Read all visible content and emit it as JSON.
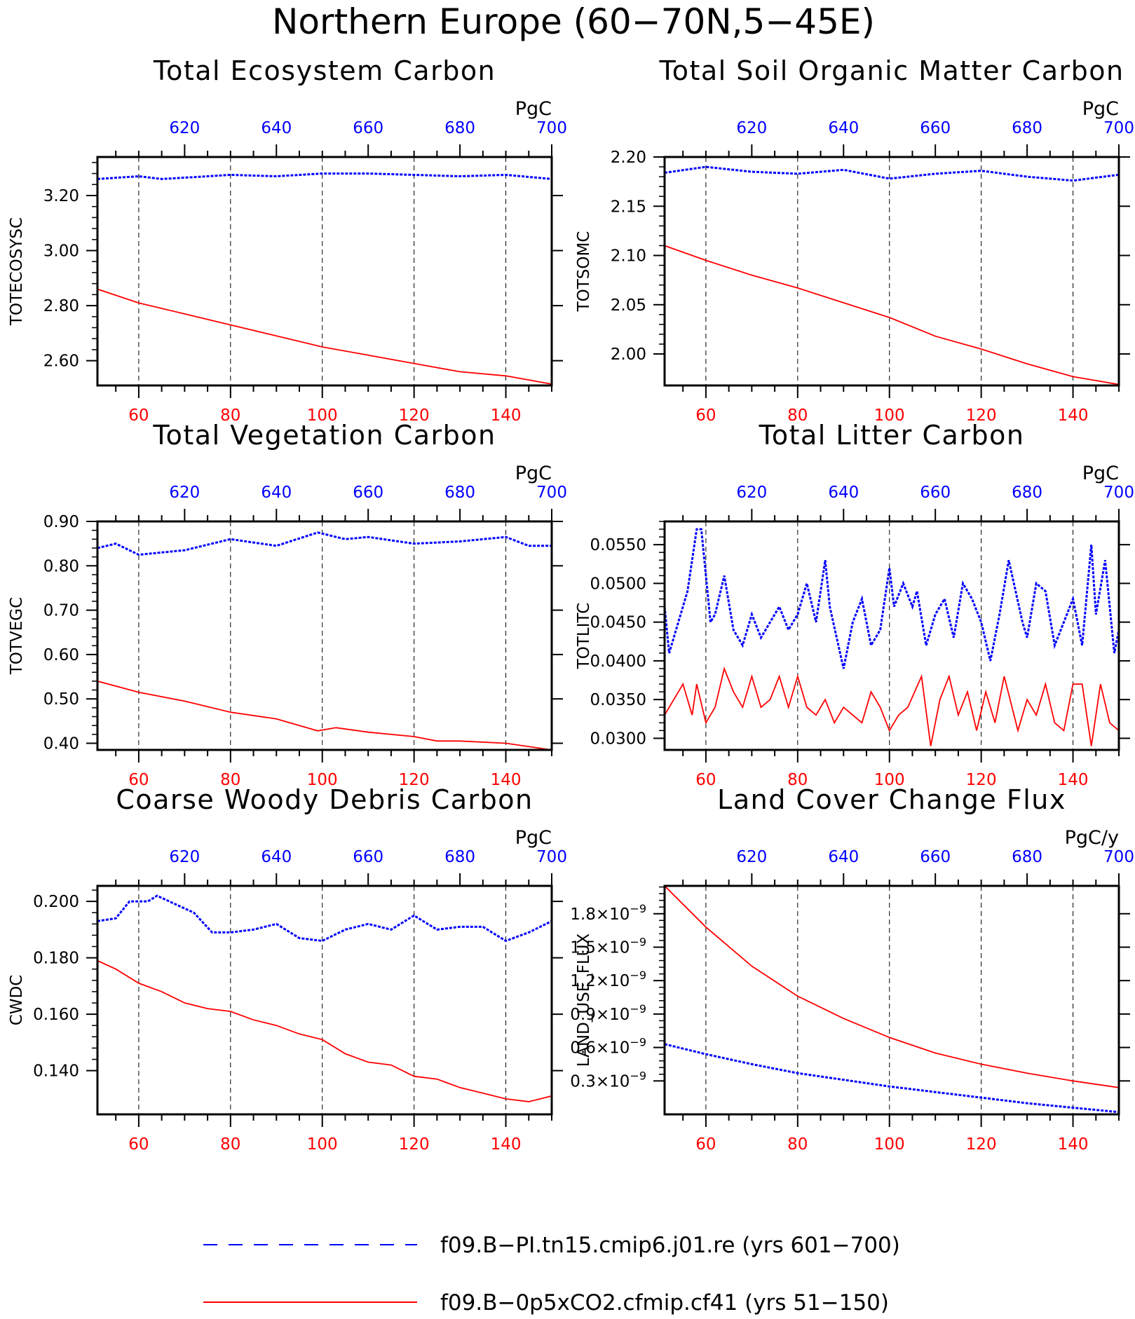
{
  "title": "Northern Europe (60−70N,5−45E)",
  "colors": {
    "blue": "#0000ff",
    "red": "#ff0000",
    "grid": "#000000"
  },
  "legend": [
    {
      "label": "f09.B−PI.tn15.cmip6.j01.re (yrs 601−700)",
      "color": "#0000ff",
      "style": "dashed"
    },
    {
      "label": "f09.B−0p5xCO2.cfmip.cf41 (yrs 51−150)",
      "color": "#ff0000",
      "style": "solid"
    }
  ],
  "chart_data": [
    {
      "type": "line",
      "title": "Total Ecosystem Carbon",
      "ylabel": "TOTECOSYSC",
      "unit": "PgC",
      "xlim_bottom": [
        51,
        150
      ],
      "xticks_bottom": [
        60,
        80,
        100,
        120,
        140
      ],
      "xlim_top": [
        601,
        700
      ],
      "xticks_top": [
        620,
        640,
        660,
        680,
        700
      ],
      "ylim": [
        2.51,
        3.34
      ],
      "yticks": [
        2.6,
        2.8,
        3.0,
        3.2
      ],
      "ytick_labels": [
        "2.60",
        "2.80",
        "3.00",
        "3.20"
      ],
      "series": [
        {
          "name": "f09.B−PI.tn15.cmip6.j01.re (yrs 601−700)",
          "color": "#0000ff",
          "axis": "top",
          "style": "dashed",
          "x": [
            601,
            610,
            615,
            620,
            630,
            640,
            650,
            660,
            670,
            680,
            690,
            700
          ],
          "y": [
            3.26,
            3.27,
            3.26,
            3.265,
            3.275,
            3.27,
            3.28,
            3.28,
            3.275,
            3.27,
            3.275,
            3.26
          ]
        },
        {
          "name": "f09.B−0p5xCO2.cfmip.cf41 (yrs 51−150)",
          "color": "#ff0000",
          "axis": "bottom",
          "style": "solid",
          "x": [
            51,
            60,
            70,
            80,
            90,
            100,
            110,
            120,
            130,
            140,
            150
          ],
          "y": [
            2.86,
            2.81,
            2.77,
            2.73,
            2.69,
            2.65,
            2.62,
            2.59,
            2.56,
            2.545,
            2.515
          ]
        }
      ]
    },
    {
      "type": "line",
      "title": "Total Soil Organic Matter Carbon",
      "ylabel": "TOTSOMC",
      "unit": "PgC",
      "xlim_bottom": [
        51,
        150
      ],
      "xticks_bottom": [
        60,
        80,
        100,
        120,
        140
      ],
      "xlim_top": [
        601,
        700
      ],
      "xticks_top": [
        620,
        640,
        660,
        680,
        700
      ],
      "ylim": [
        1.968,
        2.2
      ],
      "yticks": [
        2.0,
        2.05,
        2.1,
        2.15,
        2.2
      ],
      "ytick_labels": [
        "2.00",
        "2.05",
        "2.10",
        "2.15",
        "2.20"
      ],
      "series": [
        {
          "name": "f09.B−PI.tn15.cmip6.j01.re (yrs 601−700)",
          "color": "#0000ff",
          "axis": "top",
          "style": "dashed",
          "x": [
            601,
            610,
            620,
            630,
            640,
            650,
            660,
            670,
            680,
            690,
            700
          ],
          "y": [
            2.184,
            2.19,
            2.185,
            2.183,
            2.187,
            2.178,
            2.183,
            2.186,
            2.18,
            2.176,
            2.182
          ]
        },
        {
          "name": "f09.B−0p5xCO2.cfmip.cf41 (yrs 51−150)",
          "color": "#ff0000",
          "axis": "bottom",
          "style": "solid",
          "x": [
            51,
            60,
            70,
            80,
            90,
            100,
            110,
            120,
            130,
            140,
            150
          ],
          "y": [
            2.11,
            2.095,
            2.08,
            2.067,
            2.052,
            2.037,
            2.018,
            2.005,
            1.99,
            1.977,
            1.969
          ]
        }
      ]
    },
    {
      "type": "line",
      "title": "Total Vegetation Carbon",
      "ylabel": "TOTVEGC",
      "unit": "PgC",
      "xlim_bottom": [
        51,
        150
      ],
      "xticks_bottom": [
        60,
        80,
        100,
        120,
        140
      ],
      "xlim_top": [
        601,
        700
      ],
      "xticks_top": [
        620,
        640,
        660,
        680,
        700
      ],
      "ylim": [
        0.385,
        0.9
      ],
      "yticks": [
        0.4,
        0.5,
        0.6,
        0.7,
        0.8,
        0.9
      ],
      "ytick_labels": [
        "0.40",
        "0.50",
        "0.60",
        "0.70",
        "0.80",
        "0.90"
      ],
      "series": [
        {
          "name": "f09.B−PI.tn15.cmip6.j01.re (yrs 601−700)",
          "color": "#0000ff",
          "axis": "top",
          "style": "dashed",
          "x": [
            601,
            605,
            610,
            615,
            620,
            630,
            640,
            649,
            655,
            660,
            670,
            680,
            690,
            695,
            700
          ],
          "y": [
            0.84,
            0.85,
            0.825,
            0.83,
            0.835,
            0.86,
            0.845,
            0.875,
            0.86,
            0.865,
            0.85,
            0.855,
            0.865,
            0.845,
            0.845
          ]
        },
        {
          "name": "f09.B−0p5xCO2.cfmip.cf41 (yrs 51−150)",
          "color": "#ff0000",
          "axis": "bottom",
          "style": "solid",
          "x": [
            51,
            60,
            70,
            80,
            90,
            99,
            103,
            110,
            120,
            125,
            130,
            140,
            150
          ],
          "y": [
            0.54,
            0.515,
            0.495,
            0.47,
            0.455,
            0.428,
            0.435,
            0.425,
            0.415,
            0.405,
            0.405,
            0.4,
            0.385
          ]
        }
      ]
    },
    {
      "type": "line",
      "title": "Total Litter Carbon",
      "ylabel": "TOTLITC",
      "unit": "PgC",
      "xlim_bottom": [
        51,
        150
      ],
      "xticks_bottom": [
        60,
        80,
        100,
        120,
        140
      ],
      "xlim_top": [
        601,
        700
      ],
      "xticks_top": [
        620,
        640,
        660,
        680,
        700
      ],
      "ylim": [
        0.0285,
        0.058
      ],
      "yticks": [
        0.03,
        0.035,
        0.04,
        0.045,
        0.05,
        0.055
      ],
      "ytick_labels": [
        "0.0300",
        "0.0350",
        "0.0400",
        "0.0450",
        "0.0500",
        "0.0550"
      ],
      "series": [
        {
          "name": "f09.B−PI.tn15.cmip6.j01.re (yrs 601−700)",
          "color": "#0000ff",
          "axis": "top",
          "style": "dashed",
          "x": [
            601,
            602,
            604,
            606,
            608,
            609,
            611,
            612,
            614,
            616,
            618,
            620,
            622,
            624,
            626,
            628,
            630,
            632,
            634,
            636,
            637,
            640,
            642,
            644,
            646,
            648,
            650,
            651,
            653,
            655,
            656,
            658,
            660,
            662,
            664,
            666,
            668,
            670,
            672,
            674,
            676,
            679,
            680,
            682,
            684,
            686,
            688,
            690,
            692,
            694,
            695,
            697,
            699,
            700
          ],
          "y": [
            0.047,
            0.041,
            0.045,
            0.049,
            0.057,
            0.057,
            0.045,
            0.046,
            0.051,
            0.044,
            0.042,
            0.046,
            0.043,
            0.045,
            0.047,
            0.044,
            0.046,
            0.05,
            0.045,
            0.053,
            0.047,
            0.039,
            0.045,
            0.048,
            0.042,
            0.044,
            0.052,
            0.047,
            0.05,
            0.047,
            0.049,
            0.042,
            0.046,
            0.048,
            0.043,
            0.05,
            0.048,
            0.045,
            0.04,
            0.046,
            0.053,
            0.045,
            0.043,
            0.05,
            0.049,
            0.042,
            0.045,
            0.048,
            0.042,
            0.055,
            0.046,
            0.053,
            0.041,
            0.044
          ]
        },
        {
          "name": "f09.B−0p5xCO2.cfmip.cf41 (yrs 51−150)",
          "color": "#ff0000",
          "axis": "bottom",
          "style": "solid",
          "x": [
            51,
            53,
            55,
            57,
            58,
            60,
            62,
            64,
            66,
            68,
            70,
            72,
            74,
            76,
            78,
            80,
            82,
            84,
            86,
            88,
            90,
            92,
            94,
            96,
            98,
            100,
            102,
            104,
            107,
            109,
            111,
            113,
            115,
            117,
            119,
            121,
            123,
            125,
            128,
            130,
            132,
            134,
            136,
            138,
            140,
            142,
            144,
            146,
            148,
            150
          ],
          "y": [
            0.033,
            0.035,
            0.037,
            0.033,
            0.037,
            0.032,
            0.034,
            0.039,
            0.036,
            0.034,
            0.038,
            0.034,
            0.035,
            0.038,
            0.034,
            0.038,
            0.034,
            0.033,
            0.035,
            0.032,
            0.034,
            0.033,
            0.032,
            0.036,
            0.034,
            0.031,
            0.033,
            0.034,
            0.038,
            0.029,
            0.035,
            0.038,
            0.033,
            0.036,
            0.031,
            0.036,
            0.032,
            0.038,
            0.031,
            0.035,
            0.033,
            0.037,
            0.032,
            0.031,
            0.037,
            0.037,
            0.029,
            0.037,
            0.032,
            0.031
          ]
        }
      ]
    },
    {
      "type": "line",
      "title": "Coarse Woody Debris Carbon",
      "ylabel": "CWDC",
      "unit": "PgC",
      "xlim_bottom": [
        51,
        150
      ],
      "xticks_bottom": [
        60,
        80,
        100,
        120,
        140
      ],
      "xlim_top": [
        601,
        700
      ],
      "xticks_top": [
        620,
        640,
        660,
        680,
        700
      ],
      "ylim": [
        0.1245,
        0.2055
      ],
      "yticks": [
        0.14,
        0.16,
        0.18,
        0.2
      ],
      "ytick_labels": [
        "0.140",
        "0.160",
        "0.180",
        "0.200"
      ],
      "series": [
        {
          "name": "f09.B−PI.tn15.cmip6.j01.re (yrs 601−700)",
          "color": "#0000ff",
          "axis": "top",
          "style": "dashed",
          "x": [
            601,
            605,
            608,
            612,
            614,
            618,
            622,
            626,
            630,
            635,
            640,
            645,
            650,
            655,
            660,
            665,
            670,
            675,
            680,
            685,
            690,
            695,
            700
          ],
          "y": [
            0.193,
            0.194,
            0.2,
            0.2,
            0.202,
            0.199,
            0.196,
            0.189,
            0.189,
            0.19,
            0.192,
            0.187,
            0.186,
            0.19,
            0.192,
            0.19,
            0.195,
            0.19,
            0.191,
            0.191,
            0.186,
            0.189,
            0.193
          ]
        },
        {
          "name": "f09.B−0p5xCO2.cfmip.cf41 (yrs 51−150)",
          "color": "#ff0000",
          "axis": "bottom",
          "style": "solid",
          "x": [
            51,
            55,
            60,
            65,
            70,
            75,
            80,
            85,
            90,
            95,
            100,
            105,
            110,
            115,
            120,
            125,
            130,
            135,
            140,
            145,
            150
          ],
          "y": [
            0.179,
            0.176,
            0.171,
            0.168,
            0.164,
            0.162,
            0.161,
            0.158,
            0.156,
            0.153,
            0.151,
            0.146,
            0.143,
            0.142,
            0.138,
            0.137,
            0.134,
            0.132,
            0.13,
            0.129,
            0.131
          ]
        }
      ]
    },
    {
      "type": "line",
      "title": "Land Cover Change Flux",
      "ylabel": "LAND_USE_FLUX",
      "unit": "PgC/y",
      "xlim_bottom": [
        51,
        150
      ],
      "xticks_bottom": [
        60,
        80,
        100,
        120,
        140
      ],
      "xlim_top": [
        601,
        700
      ],
      "xticks_top": [
        620,
        640,
        660,
        680,
        700
      ],
      "ylim": [
        0,
        2.05
      ],
      "yscale_note": "values in units of 10^-9",
      "yticks": [
        0.3,
        0.6,
        0.9,
        1.2,
        1.5,
        1.8
      ],
      "ytick_labels": [
        "0.3×10",
        "0.6×10",
        "0.9×10",
        "1.2×10",
        "1.5×10",
        "1.8×10"
      ],
      "ytick_exponent": "−9",
      "series": [
        {
          "name": "f09.B−PI.tn15.cmip6.j01.re (yrs 601−700)",
          "color": "#0000ff",
          "axis": "top",
          "style": "dashed",
          "x": [
            601,
            610,
            620,
            630,
            640,
            650,
            660,
            670,
            680,
            690,
            700
          ],
          "y": [
            0.63,
            0.54,
            0.45,
            0.37,
            0.31,
            0.25,
            0.2,
            0.15,
            0.1,
            0.06,
            0.02
          ]
        },
        {
          "name": "f09.B−0p5xCO2.cfmip.cf41 (yrs 51−150)",
          "color": "#ff0000",
          "axis": "bottom",
          "style": "solid",
          "x": [
            51,
            60,
            70,
            80,
            90,
            100,
            110,
            120,
            130,
            140,
            150
          ],
          "y": [
            2.05,
            1.68,
            1.33,
            1.06,
            0.86,
            0.69,
            0.55,
            0.45,
            0.37,
            0.3,
            0.24
          ]
        }
      ]
    }
  ]
}
